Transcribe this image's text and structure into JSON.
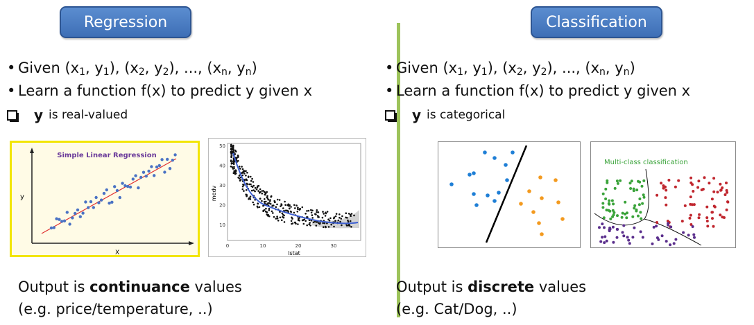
{
  "left": {
    "title": "Regression",
    "bullets": [
      "Given (x",
      "1",
      ", y",
      "1",
      "), (x",
      "2",
      ", y",
      "2",
      "), ..., (x",
      "n",
      ", y",
      "n",
      ")"
    ],
    "bullet2": "Learn a function f(x) to predict y given x",
    "check_bold": "y",
    "check_text": "is real-valued",
    "output_prefix": "Output is ",
    "output_bold": "continuance",
    "output_suffix": " values",
    "output_line2": "(e.g. price/temperature, ..)",
    "chart1": {
      "title": "Simple Linear Regression",
      "xlabel": "X",
      "ylabel": "y"
    },
    "chart2": {
      "xlabel": "lstat",
      "ylabel": "medv",
      "yticks": [
        "50",
        "40",
        "30",
        "20",
        "10"
      ],
      "xticks": [
        "0",
        "10",
        "20",
        "30"
      ]
    }
  },
  "right": {
    "title": "Classification",
    "bullet2": "Learn a function f(x) to predict y given x",
    "check_bold": "y",
    "check_text": "is categorical",
    "output_prefix": "Output is ",
    "output_bold": "discrete",
    "output_suffix": " values",
    "output_line2": "(e.g. Cat/Dog, ..)",
    "chart4": {
      "title": "Multi-class classification"
    }
  },
  "colors": {
    "button": "#4a7cc2",
    "divider": "#9dc35b",
    "blue": "#1f7fd6",
    "orange": "#f39a1f",
    "green": "#3aa33a",
    "red": "#c0262e",
    "purple": "#5a2e8c"
  }
}
